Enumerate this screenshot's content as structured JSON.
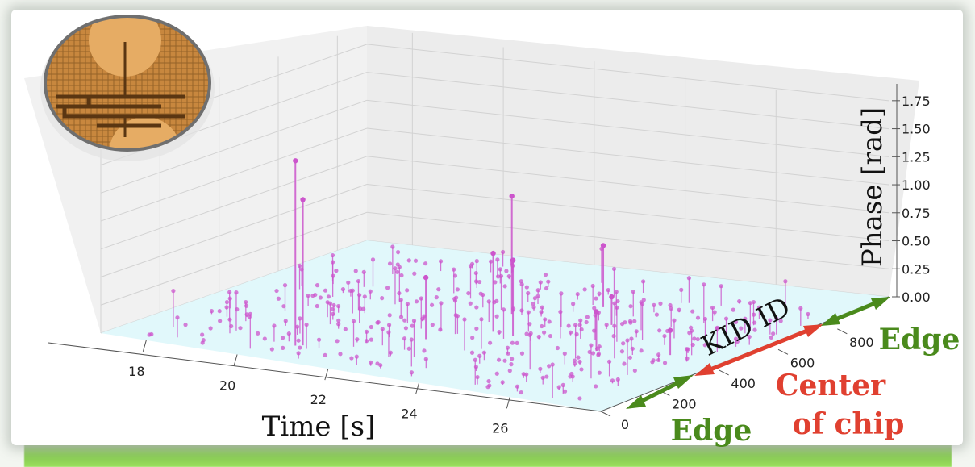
{
  "chart_data": {
    "type": "scatter3d",
    "xlabel": "Time [s]",
    "ylabel": "KID ID",
    "zlabel": "Phase [rad]",
    "x_ticks": [
      "18",
      "20",
      "22",
      "24",
      "26"
    ],
    "y_ticks": [
      "0",
      "200",
      "400",
      "600",
      "800"
    ],
    "z_ticks": [
      "0.00",
      "0.25",
      "0.50",
      "0.75",
      "1.00",
      "1.25",
      "1.50",
      "1.75"
    ],
    "xlim": [
      17,
      28
    ],
    "ylim": [
      0,
      900
    ],
    "zlim": [
      0,
      1.9
    ],
    "marker_color": "#cc55cc",
    "floor_color": "#dff8fb",
    "highlighted_events": [
      {
        "time": 20.5,
        "kid": 120,
        "phase": 1.65
      },
      {
        "time": 20.6,
        "kid": 130,
        "phase": 1.3
      },
      {
        "time": 22.4,
        "kid": 560,
        "phase": 1.05
      },
      {
        "time": 22.2,
        "kid": 300,
        "phase": 0.55
      },
      {
        "time": 22.9,
        "kid": 420,
        "phase": 0.7
      },
      {
        "time": 23.4,
        "kid": 410,
        "phase": 0.68
      },
      {
        "time": 23.5,
        "kid": 700,
        "phase": 0.55
      },
      {
        "time": 24.4,
        "kid": 590,
        "phase": 0.25
      },
      {
        "time": 25.3,
        "kid": 400,
        "phase": 0.35
      },
      {
        "time": 26.6,
        "kid": 450,
        "phase": 0.22
      }
    ]
  },
  "annotations": {
    "edge_low": "Edge",
    "edge_high": "Edge",
    "center_line1": "Center",
    "center_line2": "of chip",
    "edge_color": "#4a8a1c",
    "center_color": "#e04030"
  },
  "inset": {
    "icon": "kid-chip-micrograph",
    "base_color": "#d79a4a"
  }
}
